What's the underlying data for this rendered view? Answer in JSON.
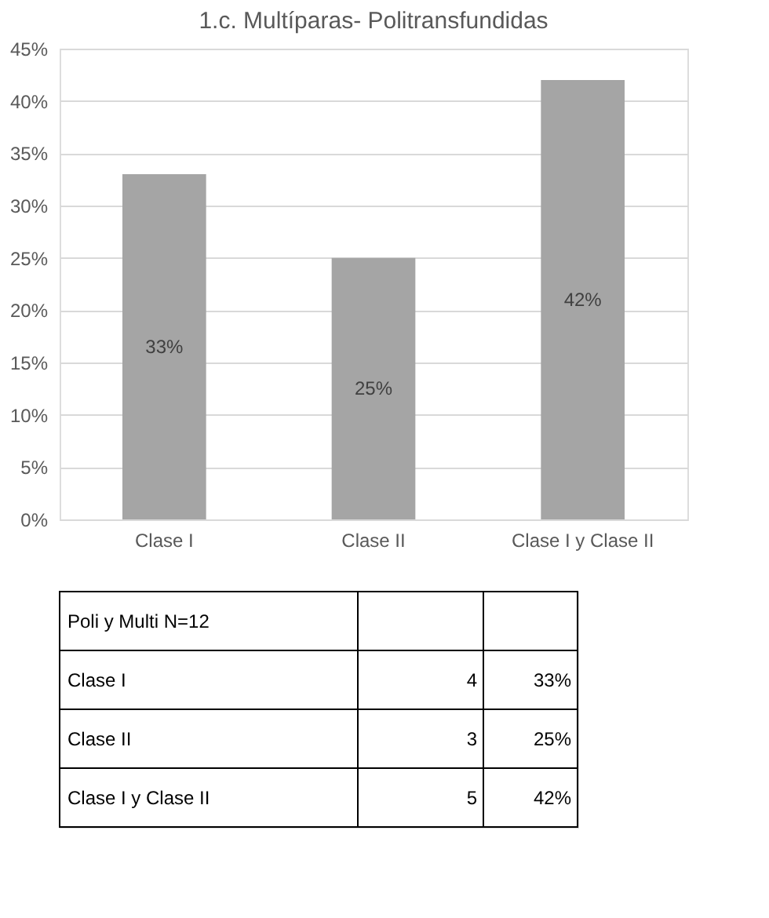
{
  "chart_data": [
    {
      "type": "bar",
      "title": "1.c. Multíparas- Politransfundidas",
      "categories": [
        "Clase I",
        "Clase II",
        "Clase I y Clase II"
      ],
      "values": [
        33,
        25,
        42
      ],
      "color": "#a5a5a5",
      "value_labels": [
        "33%",
        "25%",
        "42%"
      ],
      "ylim": [
        0,
        45
      ],
      "yticks": [
        {
          "value": 0,
          "label": "0%"
        },
        {
          "value": 5,
          "label": "5%"
        },
        {
          "value": 10,
          "label": "10%"
        },
        {
          "value": 15,
          "label": "15%"
        },
        {
          "value": 20,
          "label": "20%"
        },
        {
          "value": 25,
          "label": "25%"
        },
        {
          "value": 30,
          "label": "30%"
        },
        {
          "value": 35,
          "label": "35%"
        },
        {
          "value": 40,
          "label": "40%"
        },
        {
          "value": 45,
          "label": "45%"
        }
      ],
      "grid": "y"
    },
    {
      "type": "other",
      "title": "Poli y Multi N=12",
      "categories": [
        "Clase I",
        "Clase II",
        "Clase I y Clase II"
      ],
      "values": [
        4,
        3,
        5
      ],
      "data_labels": true,
      "annotations": [
        "33%",
        "25%",
        "42%"
      ]
    }
  ]
}
